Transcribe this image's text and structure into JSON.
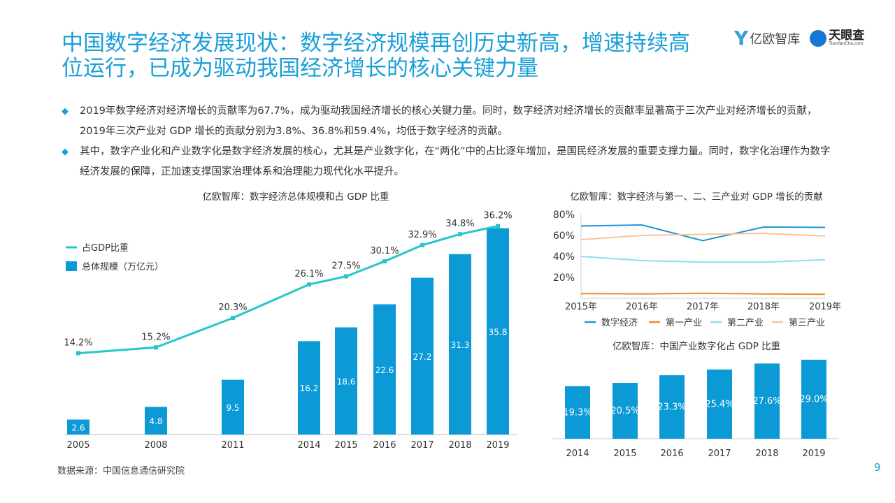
{
  "title": "中国数字经济发展现状：数字经济规模再创历史新高，增速持续高位运行，已成为驱动我国经济增长的核心关键力量",
  "logos": {
    "yiou": "亿欧智库",
    "tianyancha": "天眼查",
    "tianyancha_sub": "TianYanCha.com"
  },
  "bullets": [
    "2019年数字经济对经济增长的贡献率为67.7%，成为驱动我国经济增长的核心关键力量。同时，数字经济对经济增长的贡献率显著高于三次产业对经济增长的贡献，2019年三次产业对 GDP 增长的贡献分别为3.8%、36.8%和59.4%，均低于数字经济的贡献。",
    "其中，数字产业化和产业数字化是数字经济发展的核心，尤其是产业数字化，在“两化”中的占比逐年增加，是国民经济发展的重要支撑力量。同时，数字化治理作为数字经济发展的保障，正加速支撑国家治理体系和治理能力现代化水平提升。"
  ],
  "colors": {
    "accent": "#1a9fd8",
    "bar": "#0b9ad6",
    "line": "#27c6c9",
    "digital": "#1f96d4",
    "primary": "#f08a2c",
    "secondary": "#8fdcf0",
    "tertiary": "#f8c39c"
  },
  "chart_data": [
    {
      "type": "bar+line",
      "title": "亿欧智库：数字经济总体规模和占 GDP 比重",
      "categories": [
        "2005",
        "2008",
        "2011",
        "2014",
        "2015",
        "2016",
        "2017",
        "2018",
        "2019"
      ],
      "series": [
        {
          "name": "总体规模（万亿元）",
          "type": "bar",
          "values": [
            2.6,
            4.8,
            9.5,
            16.2,
            18.6,
            22.6,
            27.2,
            31.3,
            35.8
          ]
        },
        {
          "name": "占GDP比重",
          "type": "line",
          "values": [
            14.2,
            15.2,
            20.3,
            26.1,
            27.5,
            30.1,
            32.9,
            34.8,
            36.2
          ],
          "labels": [
            "14.2%",
            "15.2%",
            "20.3%",
            "26.1%",
            "27.5%",
            "30.1%",
            "32.9%",
            "34.8%",
            "36.2%"
          ]
        }
      ],
      "legend": "top-left"
    },
    {
      "type": "line",
      "title": "亿欧智库：数字经济与第一、二、三产业对 GDP 增长的贡献",
      "categories": [
        "2015年",
        "2016年",
        "2017年",
        "2018年",
        "2019年"
      ],
      "yticks": [
        "20%",
        "40%",
        "60%",
        "80%"
      ],
      "ylim": [
        0,
        80
      ],
      "series": [
        {
          "name": "数字经济",
          "values": [
            69,
            70,
            55,
            68,
            67.7
          ]
        },
        {
          "name": "第一产业",
          "values": [
            4.5,
            4.2,
            4.8,
            4.2,
            3.8
          ]
        },
        {
          "name": "第二产业",
          "values": [
            40,
            36,
            34.5,
            34.5,
            36.8
          ]
        },
        {
          "name": "第三产业",
          "values": [
            56,
            60,
            61,
            62,
            59.4
          ]
        }
      ],
      "legend": "bottom"
    },
    {
      "type": "bar",
      "title": "亿欧智库：中国产业数字化占 GDP 比重",
      "categories": [
        "2014",
        "2015",
        "2016",
        "2017",
        "2018",
        "2019"
      ],
      "values": [
        19.3,
        20.5,
        23.3,
        25.4,
        27.6,
        29.0
      ],
      "labels": [
        "19.3%",
        "20.5%",
        "23.3%",
        "25.4%",
        "27.6%",
        "29.0%"
      ]
    }
  ],
  "source": "数据来源：中国信息通信研究院",
  "page": "9"
}
